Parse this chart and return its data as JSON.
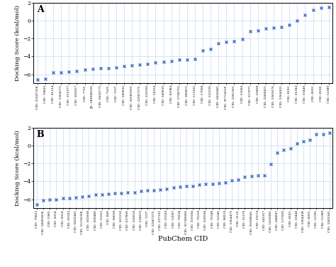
{
  "panel_A": {
    "label": "A",
    "x_labels": [
      "CID: 25247358",
      "CID: 70825",
      "CID: 41124",
      "CID: 5364573",
      "CID: 551377",
      "CID: 569357",
      "CID: 7725",
      "JD: 249948356",
      "CID: 6432173",
      "CID: 7501",
      "CID: 7237",
      "CID: 549662",
      "CID: 20585933",
      "CID: 22967275",
      "CID: 559104",
      "CID: 14334",
      "CID: 549059",
      "CID: 81084",
      "CID: 2728763",
      "CID: 586811",
      "CID: 111262",
      "CID: 17008",
      "CID: 123156",
      "CID: 6432445",
      "CID: 91714556",
      "CID: 5281365",
      "CID: 15600",
      "CID: 557075",
      "CID: 10408",
      "CID: 5284421",
      "CID: 5362676",
      "CID: 5364431",
      "CID: 8181",
      "CID: 31284",
      "CID: 10446",
      "CID: 8201",
      "CID: 8182",
      "CID: 12389"
    ],
    "y_values": [
      -6.6,
      -6.5,
      -5.8,
      -5.8,
      -5.7,
      -5.6,
      -5.5,
      -5.4,
      -5.3,
      -5.3,
      -5.2,
      -5.1,
      -5.0,
      -4.9,
      -4.8,
      -4.7,
      -4.6,
      -4.5,
      -4.4,
      -4.4,
      -4.3,
      -3.3,
      -3.2,
      -2.5,
      -2.4,
      -2.3,
      -2.1,
      -1.2,
      -1.1,
      -0.9,
      -0.8,
      -0.7,
      -0.5,
      0.0,
      0.6,
      1.2,
      1.4,
      1.5
    ],
    "ylim": [
      -7,
      2
    ],
    "yticks": [
      -6,
      -4,
      -2,
      0,
      2
    ]
  },
  "panel_B": {
    "label": "B",
    "x_labels": [
      "CID: 70825",
      "CID: 54685836",
      "CID: 1983",
      "CID: 5054",
      "CID: 6054",
      "CID: 69322",
      "CID: 6432445",
      "CID: 51136328",
      "CID: 565668",
      "CID: 699486",
      "CID: 10351",
      "CID: 849",
      "CID: 99038",
      "CID: 565150",
      "CID: 637866",
      "CID: 526618",
      "CID: 534619",
      "CID: 7237",
      "CID: 22967275",
      "CID: 237332",
      "CID: 10329",
      "CID: 12097",
      "CID: 70258",
      "CID: 91740684",
      "CID: 559104",
      "CID: 79310",
      "CID: 250594",
      "CID: 76349",
      "CID: 10341",
      "CID: 98219",
      "CID: 5364473",
      "CID: 2116",
      "CID: 31276",
      "CID: 91698641",
      "CID: 33574",
      "CID: 542357",
      "CID: 1410085",
      "CID: 248847",
      "CID: 137020",
      "CID: 8181",
      "CID: 10446",
      "CID: 5364438",
      "CID: 8201",
      "CID: 12391",
      "CID: 12389",
      "CID: 5283345"
    ],
    "y_values": [
      -6.6,
      -6.1,
      -6.0,
      -6.0,
      -5.9,
      -5.9,
      -5.8,
      -5.7,
      -5.6,
      -5.5,
      -5.5,
      -5.4,
      -5.3,
      -5.3,
      -5.2,
      -5.2,
      -5.1,
      -5.0,
      -5.0,
      -4.9,
      -4.8,
      -4.7,
      -4.6,
      -4.5,
      -4.5,
      -4.4,
      -4.3,
      -4.3,
      -4.2,
      -4.1,
      -3.9,
      -3.8,
      -3.5,
      -3.4,
      -3.3,
      -3.3,
      -2.1,
      -0.8,
      -0.5,
      -0.3,
      0.2,
      0.5,
      0.6,
      1.3,
      1.3,
      1.4
    ],
    "ylim": [
      -7,
      2
    ],
    "yticks": [
      -6,
      -4,
      -2,
      0,
      2
    ]
  },
  "marker_color": "#4472c4",
  "marker_style": "x",
  "marker_size": 3.5,
  "marker_linewidth": 1.0,
  "grid_color": "#c5d9f1",
  "background_color": "#ffffff",
  "xlabel": "PubChem CID",
  "ylabel": "Docking Score (kcal/mol)",
  "xtick_fontsize": 3.2,
  "ytick_fontsize": 5.5,
  "ylabel_fontsize": 6.0,
  "xlabel_fontsize": 7.0,
  "panel_label_fontsize": 9
}
